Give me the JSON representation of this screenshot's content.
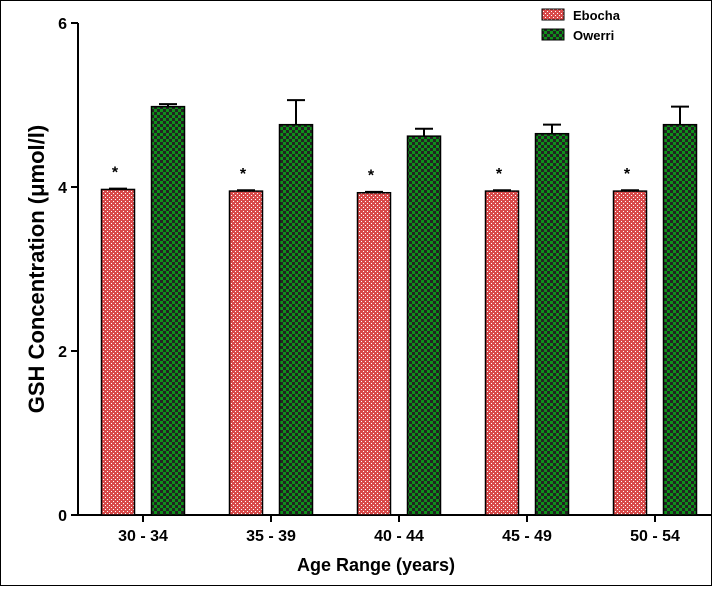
{
  "chart_data": {
    "type": "bar",
    "categories": [
      "30 - 34",
      "35 - 39",
      "40 - 44",
      "45 - 49",
      "50 - 54"
    ],
    "series": [
      {
        "name": "Ebocha",
        "values": [
          3.97,
          3.95,
          3.93,
          3.95,
          3.95
        ],
        "errors": [
          0.01,
          0.01,
          0.01,
          0.01,
          0.01
        ],
        "color": "#e45f5f",
        "pattern": "red-crosshatch",
        "annotations": [
          "*",
          "*",
          "*",
          "*",
          "*"
        ]
      },
      {
        "name": "Owerri",
        "values": [
          4.98,
          4.76,
          4.62,
          4.65,
          4.76
        ],
        "errors": [
          0.03,
          0.3,
          0.09,
          0.11,
          0.22
        ],
        "color": "#1ea21e",
        "pattern": "green-checker"
      }
    ],
    "xlabel": "Age Range (years)",
    "ylabel": "GSH Concentration (μmol/l)",
    "ylim": [
      0,
      6
    ],
    "yticks": [
      "0",
      "2",
      "4",
      "6"
    ],
    "grid": false,
    "legend_position": "top-right",
    "error_bars": "upper"
  }
}
